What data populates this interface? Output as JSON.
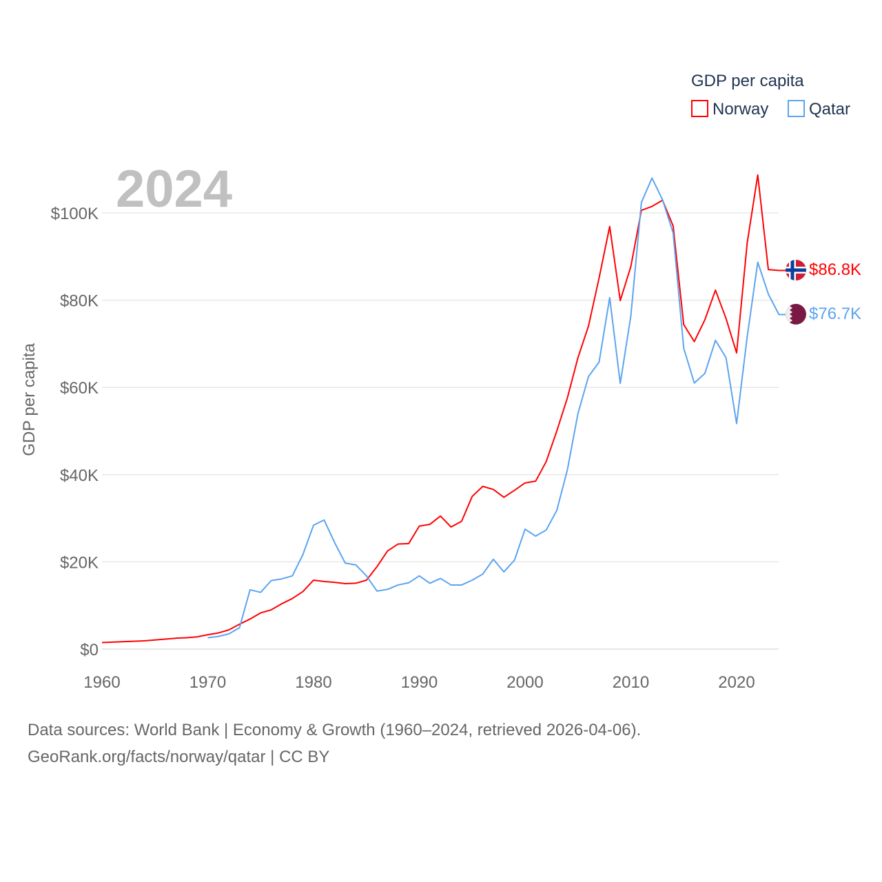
{
  "chart_data": {
    "type": "line",
    "year_label": "2024",
    "ylabel": "GDP per capita",
    "legend_title": "GDP per capita",
    "legend_position": "top-right",
    "xlim": [
      1960,
      2024
    ],
    "ylim": [
      0,
      110000
    ],
    "x_ticks": [
      1960,
      1970,
      1980,
      1990,
      2000,
      2010,
      2020
    ],
    "y_ticks": [
      {
        "v": 0,
        "label": "$0"
      },
      {
        "v": 20000,
        "label": "$20K"
      },
      {
        "v": 40000,
        "label": "$40K"
      },
      {
        "v": 60000,
        "label": "$60K"
      },
      {
        "v": 80000,
        "label": "$80K"
      },
      {
        "v": 100000,
        "label": "$100K"
      }
    ],
    "series": [
      {
        "name": "Norway",
        "color": "#ff0000",
        "start": 1960,
        "end_label": "$86.8K",
        "flag": "norway-flag",
        "values": [
          1.5,
          1.6,
          1.7,
          1.8,
          1.9,
          2.1,
          2.3,
          2.5,
          2.6,
          2.8,
          3.3,
          3.7,
          4.4,
          5.7,
          6.9,
          8.3,
          9.0,
          10.4,
          11.6,
          13.2,
          15.8,
          15.5,
          15.3,
          15.0,
          15.1,
          15.8,
          18.9,
          22.5,
          24.1,
          24.2,
          28.2,
          28.6,
          30.5,
          28.0,
          29.3,
          35.0,
          37.3,
          36.6,
          34.8,
          36.4,
          38.1,
          38.5,
          43.0,
          50.0,
          57.6,
          66.8,
          74.1,
          85.1,
          96.9,
          79.9,
          87.7,
          100.6,
          101.5,
          102.9,
          97.0,
          74.4,
          70.5,
          75.5,
          82.3,
          75.8,
          67.9,
          93.1,
          108.7,
          87.0,
          86.8
        ]
      },
      {
        "name": "Qatar",
        "color": "#5ba4ef",
        "start": 1970,
        "end_label": "$76.7K",
        "flag": "qatar-flag",
        "values": [
          2.6,
          2.9,
          3.5,
          4.9,
          13.6,
          13.0,
          15.7,
          16.1,
          16.8,
          21.7,
          28.4,
          29.6,
          24.4,
          19.7,
          19.3,
          16.8,
          13.3,
          13.7,
          14.7,
          15.2,
          16.8,
          15.1,
          16.2,
          14.7,
          14.7,
          15.8,
          17.2,
          20.6,
          17.7,
          20.4,
          27.5,
          25.9,
          27.3,
          31.8,
          41.1,
          54.0,
          62.5,
          65.8,
          80.6,
          60.9,
          76.4,
          102.4,
          108.0,
          103.0,
          95.4,
          69.0,
          61.0,
          63.2,
          70.8,
          66.8,
          51.7,
          71.6,
          88.7,
          81.4,
          76.7
        ]
      }
    ],
    "value_unit": "thousand USD"
  },
  "footer": {
    "line1": "Data sources: World Bank | Economy & Growth (1960–2024, retrieved 2026-04-06).",
    "line2": "GeoRank.org/facts/norway/qatar | CC BY"
  }
}
